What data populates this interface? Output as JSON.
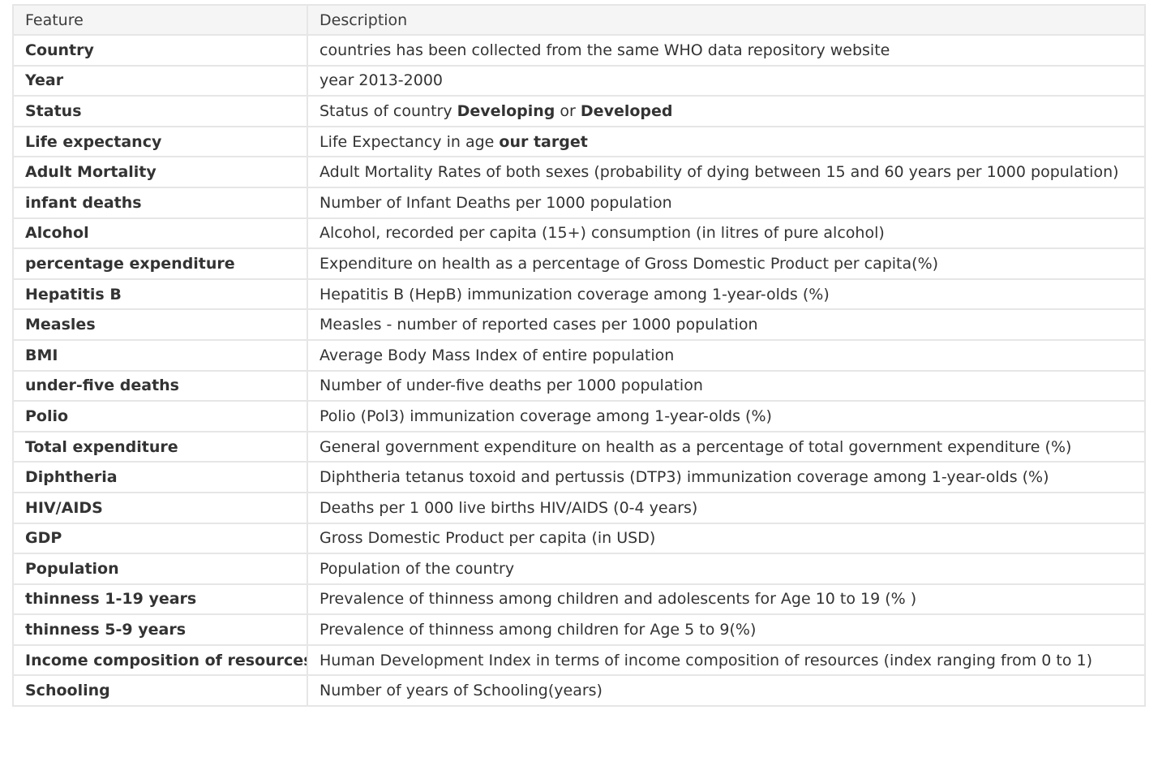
{
  "table": {
    "headers": {
      "feature": "Feature",
      "description": "Description"
    },
    "rows": [
      {
        "feature": "Country",
        "description": [
          {
            "text": "countries has been collected from the same WHO data repository website",
            "bold": false
          }
        ]
      },
      {
        "feature": "Year",
        "description": [
          {
            "text": "year 2013-2000",
            "bold": false
          }
        ]
      },
      {
        "feature": "Status",
        "description": [
          {
            "text": "Status of country ",
            "bold": false
          },
          {
            "text": "Developing",
            "bold": true
          },
          {
            "text": " or ",
            "bold": false
          },
          {
            "text": "Developed",
            "bold": true
          }
        ]
      },
      {
        "feature": "Life expectancy",
        "description": [
          {
            "text": "Life Expectancy in age ",
            "bold": false
          },
          {
            "text": "our target",
            "bold": true
          }
        ]
      },
      {
        "feature": "Adult Mortality",
        "description": [
          {
            "text": "Adult Mortality Rates of both sexes (probability of dying between 15 and 60 years per 1000 population)",
            "bold": false
          }
        ]
      },
      {
        "feature": "infant deaths",
        "description": [
          {
            "text": "Number of Infant Deaths per 1000 population",
            "bold": false
          }
        ]
      },
      {
        "feature": "Alcohol",
        "description": [
          {
            "text": "Alcohol, recorded per capita (15+) consumption (in litres of pure alcohol)",
            "bold": false
          }
        ]
      },
      {
        "feature": "percentage expenditure",
        "description": [
          {
            "text": "Expenditure on health as a percentage of Gross Domestic Product per capita(%)",
            "bold": false
          }
        ]
      },
      {
        "feature": "Hepatitis B",
        "description": [
          {
            "text": "Hepatitis B (HepB) immunization coverage among 1-year-olds (%)",
            "bold": false
          }
        ]
      },
      {
        "feature": "Measles",
        "description": [
          {
            "text": "Measles - number of reported cases per 1000 population",
            "bold": false
          }
        ]
      },
      {
        "feature": "BMI",
        "description": [
          {
            "text": "Average Body Mass Index of entire population",
            "bold": false
          }
        ]
      },
      {
        "feature": "under-five deaths",
        "description": [
          {
            "text": "Number of under-five deaths per 1000 population",
            "bold": false
          }
        ]
      },
      {
        "feature": "Polio",
        "description": [
          {
            "text": "Polio (Pol3) immunization coverage among 1-year-olds (%)",
            "bold": false
          }
        ]
      },
      {
        "feature": "Total expenditure",
        "description": [
          {
            "text": "General government expenditure on health as a percentage of total government expenditure (%)",
            "bold": false
          }
        ]
      },
      {
        "feature": "Diphtheria",
        "description": [
          {
            "text": "Diphtheria tetanus toxoid and pertussis (DTP3) immunization coverage among 1-year-olds (%)",
            "bold": false
          }
        ]
      },
      {
        "feature": "HIV/AIDS",
        "description": [
          {
            "text": "Deaths per 1 000 live births HIV/AIDS (0-4 years)",
            "bold": false
          }
        ]
      },
      {
        "feature": "GDP",
        "description": [
          {
            "text": "Gross Domestic Product per capita (in USD)",
            "bold": false
          }
        ]
      },
      {
        "feature": "Population",
        "description": [
          {
            "text": "Population of the country",
            "bold": false
          }
        ]
      },
      {
        "feature": "thinness 1-19 years",
        "description": [
          {
            "text": "Prevalence of thinness among children and adolescents for Age 10 to 19 (% )",
            "bold": false
          }
        ]
      },
      {
        "feature": "thinness 5-9 years",
        "description": [
          {
            "text": "Prevalence of thinness among children for Age 5 to 9(%)",
            "bold": false
          }
        ]
      },
      {
        "feature": "Income composition of resources",
        "description": [
          {
            "text": "Human Development Index in terms of income composition of resources (index ranging from 0 to 1)",
            "bold": false
          }
        ]
      },
      {
        "feature": "Schooling",
        "description": [
          {
            "text": "Number of years of Schooling(years)",
            "bold": false
          }
        ]
      }
    ]
  }
}
